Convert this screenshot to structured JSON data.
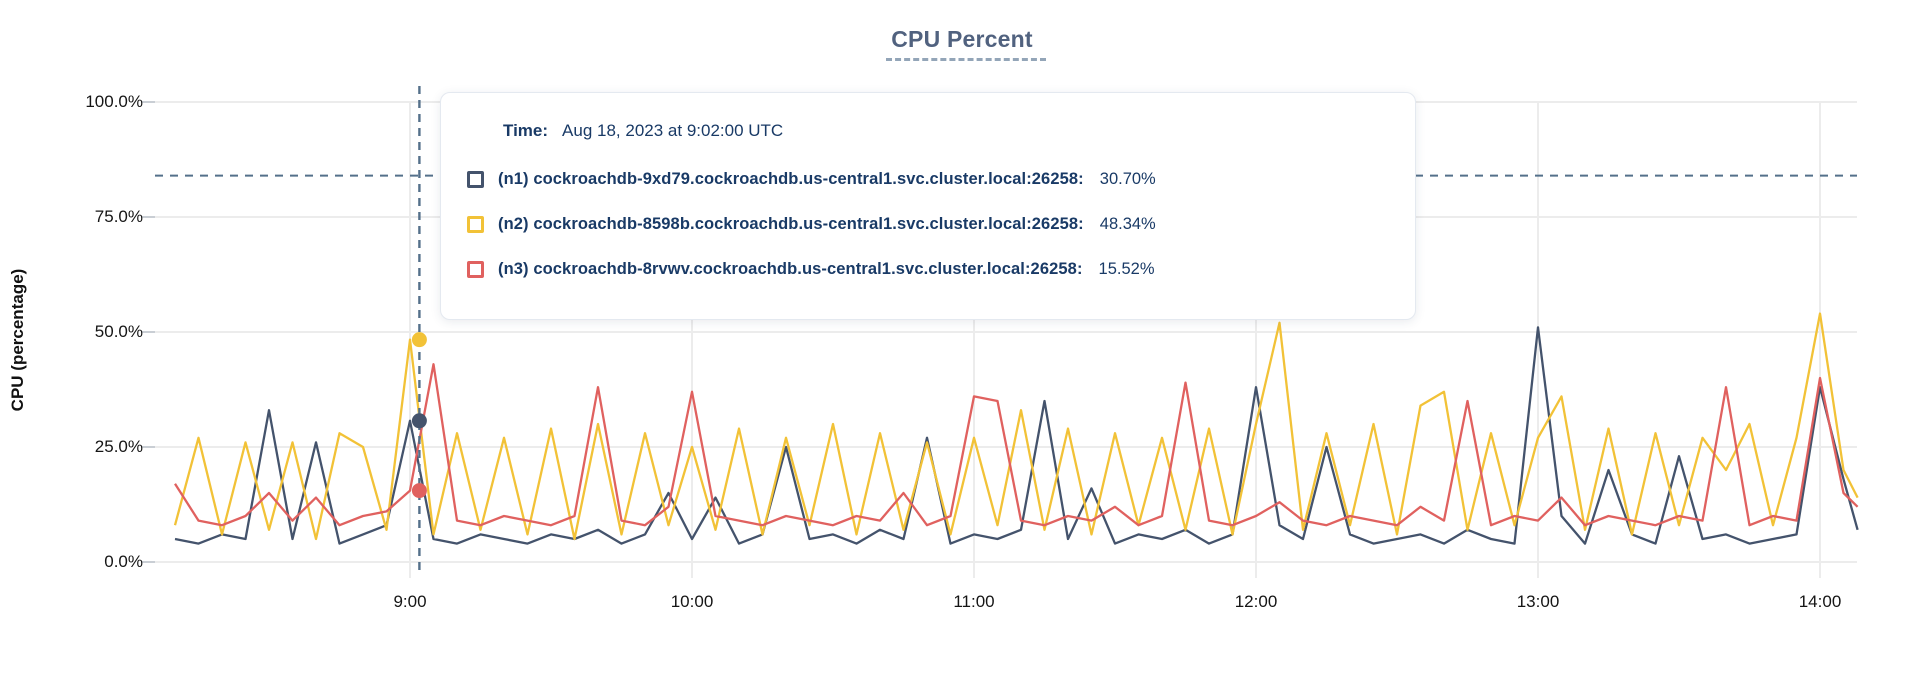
{
  "chart_data": {
    "type": "line",
    "title": "CPU Percent",
    "ylabel": "CPU (percentage)",
    "ylim": [
      0,
      100
    ],
    "grid": true,
    "legend_position": "tooltip",
    "y_ticks": [
      {
        "label": "0.0%",
        "value": 0
      },
      {
        "label": "25.0%",
        "value": 25
      },
      {
        "label": "50.0%",
        "value": 50
      },
      {
        "label": "75.0%",
        "value": 75
      },
      {
        "label": "100.0%",
        "value": 100
      }
    ],
    "x_ticks": [
      {
        "label": "9:00",
        "minutes": 540
      },
      {
        "label": "10:00",
        "minutes": 600
      },
      {
        "label": "11:00",
        "minutes": 660
      },
      {
        "label": "12:00",
        "minutes": 720
      },
      {
        "label": "13:00",
        "minutes": 780
      },
      {
        "label": "14:00",
        "minutes": 840
      }
    ],
    "threshold_percent": 84,
    "hover": {
      "minutes": 542,
      "time": "Aug 18, 2023 at 9:02:00 UTC",
      "values": [
        30.7,
        48.34,
        15.52
      ]
    },
    "series": [
      {
        "id": "n1",
        "name": "(n1) cockroachdb-9xd79.cockroachdb.us-central1.svc.cluster.local:26258",
        "color": "#44536c",
        "points": [
          [
            490,
            5
          ],
          [
            495,
            4
          ],
          [
            500,
            6
          ],
          [
            505,
            5
          ],
          [
            510,
            33
          ],
          [
            515,
            5
          ],
          [
            520,
            26
          ],
          [
            525,
            4
          ],
          [
            530,
            6
          ],
          [
            535,
            8
          ],
          [
            540,
            30.7
          ],
          [
            545,
            5
          ],
          [
            550,
            4
          ],
          [
            555,
            6
          ],
          [
            560,
            5
          ],
          [
            565,
            4
          ],
          [
            570,
            6
          ],
          [
            575,
            5
          ],
          [
            580,
            7
          ],
          [
            585,
            4
          ],
          [
            590,
            6
          ],
          [
            595,
            15
          ],
          [
            600,
            5
          ],
          [
            605,
            14
          ],
          [
            610,
            4
          ],
          [
            615,
            6
          ],
          [
            620,
            25
          ],
          [
            625,
            5
          ],
          [
            630,
            6
          ],
          [
            635,
            4
          ],
          [
            640,
            7
          ],
          [
            645,
            5
          ],
          [
            650,
            27
          ],
          [
            655,
            4
          ],
          [
            660,
            6
          ],
          [
            665,
            5
          ],
          [
            670,
            7
          ],
          [
            675,
            35
          ],
          [
            680,
            5
          ],
          [
            685,
            16
          ],
          [
            690,
            4
          ],
          [
            695,
            6
          ],
          [
            700,
            5
          ],
          [
            705,
            7
          ],
          [
            710,
            4
          ],
          [
            715,
            6
          ],
          [
            720,
            38
          ],
          [
            725,
            8
          ],
          [
            730,
            5
          ],
          [
            735,
            25
          ],
          [
            740,
            6
          ],
          [
            745,
            4
          ],
          [
            750,
            5
          ],
          [
            755,
            6
          ],
          [
            760,
            4
          ],
          [
            765,
            7
          ],
          [
            770,
            5
          ],
          [
            775,
            4
          ],
          [
            780,
            51
          ],
          [
            785,
            10
          ],
          [
            790,
            4
          ],
          [
            795,
            20
          ],
          [
            800,
            6
          ],
          [
            805,
            4
          ],
          [
            810,
            23
          ],
          [
            815,
            5
          ],
          [
            820,
            6
          ],
          [
            825,
            4
          ],
          [
            830,
            5
          ],
          [
            835,
            6
          ],
          [
            840,
            38
          ],
          [
            845,
            18
          ],
          [
            848,
            7
          ]
        ]
      },
      {
        "id": "n2",
        "name": "(n2) cockroachdb-8598b.cockroachdb.us-central1.svc.cluster.local:26258",
        "color": "#f2c237",
        "points": [
          [
            490,
            8
          ],
          [
            495,
            27
          ],
          [
            500,
            6
          ],
          [
            505,
            26
          ],
          [
            510,
            7
          ],
          [
            515,
            26
          ],
          [
            520,
            5
          ],
          [
            525,
            28
          ],
          [
            530,
            25
          ],
          [
            535,
            7
          ],
          [
            540,
            48.34
          ],
          [
            545,
            6
          ],
          [
            550,
            28
          ],
          [
            555,
            7
          ],
          [
            560,
            27
          ],
          [
            565,
            6
          ],
          [
            570,
            29
          ],
          [
            575,
            5
          ],
          [
            580,
            30
          ],
          [
            585,
            6
          ],
          [
            590,
            28
          ],
          [
            595,
            8
          ],
          [
            600,
            25
          ],
          [
            605,
            7
          ],
          [
            610,
            29
          ],
          [
            615,
            6
          ],
          [
            620,
            27
          ],
          [
            625,
            8
          ],
          [
            630,
            30
          ],
          [
            635,
            6
          ],
          [
            640,
            28
          ],
          [
            645,
            7
          ],
          [
            650,
            26
          ],
          [
            655,
            6
          ],
          [
            660,
            27
          ],
          [
            665,
            8
          ],
          [
            670,
            33
          ],
          [
            675,
            7
          ],
          [
            680,
            29
          ],
          [
            685,
            6
          ],
          [
            690,
            28
          ],
          [
            695,
            8
          ],
          [
            700,
            27
          ],
          [
            705,
            7
          ],
          [
            710,
            29
          ],
          [
            715,
            6
          ],
          [
            720,
            30
          ],
          [
            725,
            52
          ],
          [
            730,
            7
          ],
          [
            735,
            28
          ],
          [
            740,
            8
          ],
          [
            745,
            30
          ],
          [
            750,
            6
          ],
          [
            755,
            34
          ],
          [
            760,
            37
          ],
          [
            765,
            7
          ],
          [
            770,
            28
          ],
          [
            775,
            8
          ],
          [
            780,
            27
          ],
          [
            785,
            36
          ],
          [
            790,
            7
          ],
          [
            795,
            29
          ],
          [
            800,
            6
          ],
          [
            805,
            28
          ],
          [
            810,
            8
          ],
          [
            815,
            27
          ],
          [
            820,
            20
          ],
          [
            825,
            30
          ],
          [
            830,
            8
          ],
          [
            835,
            27
          ],
          [
            840,
            54
          ],
          [
            845,
            20
          ],
          [
            848,
            14
          ]
        ]
      },
      {
        "id": "n3",
        "name": "(n3) cockroachdb-8rvwv.cockroachdb.us-central1.svc.cluster.local:26258",
        "color": "#e0615f",
        "points": [
          [
            490,
            17
          ],
          [
            495,
            9
          ],
          [
            500,
            8
          ],
          [
            505,
            10
          ],
          [
            510,
            15
          ],
          [
            515,
            9
          ],
          [
            520,
            14
          ],
          [
            525,
            8
          ],
          [
            530,
            10
          ],
          [
            535,
            11
          ],
          [
            540,
            15.52
          ],
          [
            545,
            43
          ],
          [
            550,
            9
          ],
          [
            555,
            8
          ],
          [
            560,
            10
          ],
          [
            565,
            9
          ],
          [
            570,
            8
          ],
          [
            575,
            10
          ],
          [
            580,
            38
          ],
          [
            585,
            9
          ],
          [
            590,
            8
          ],
          [
            595,
            12
          ],
          [
            600,
            37
          ],
          [
            605,
            10
          ],
          [
            610,
            9
          ],
          [
            615,
            8
          ],
          [
            620,
            10
          ],
          [
            625,
            9
          ],
          [
            630,
            8
          ],
          [
            635,
            10
          ],
          [
            640,
            9
          ],
          [
            645,
            15
          ],
          [
            650,
            8
          ],
          [
            655,
            10
          ],
          [
            660,
            36
          ],
          [
            665,
            35
          ],
          [
            670,
            9
          ],
          [
            675,
            8
          ],
          [
            680,
            10
          ],
          [
            685,
            9
          ],
          [
            690,
            12
          ],
          [
            695,
            8
          ],
          [
            700,
            10
          ],
          [
            705,
            39
          ],
          [
            710,
            9
          ],
          [
            715,
            8
          ],
          [
            720,
            10
          ],
          [
            725,
            13
          ],
          [
            730,
            9
          ],
          [
            735,
            8
          ],
          [
            740,
            10
          ],
          [
            745,
            9
          ],
          [
            750,
            8
          ],
          [
            755,
            12
          ],
          [
            760,
            9
          ],
          [
            765,
            35
          ],
          [
            770,
            8
          ],
          [
            775,
            10
          ],
          [
            780,
            9
          ],
          [
            785,
            14
          ],
          [
            790,
            8
          ],
          [
            795,
            10
          ],
          [
            800,
            9
          ],
          [
            805,
            8
          ],
          [
            810,
            10
          ],
          [
            815,
            9
          ],
          [
            820,
            38
          ],
          [
            825,
            8
          ],
          [
            830,
            10
          ],
          [
            835,
            9
          ],
          [
            840,
            40
          ],
          [
            845,
            15
          ],
          [
            848,
            12
          ]
        ]
      }
    ]
  },
  "tooltip": {
    "time_label": "Time:",
    "time_value": "Aug 18, 2023 at 9:02:00 UTC",
    "rows": [
      {
        "label": "(n1) cockroachdb-9xd79.cockroachdb.us-central1.svc.cluster.local:26258:",
        "value": "30.70%",
        "color": "#44536c"
      },
      {
        "label": "(n2) cockroachdb-8598b.cockroachdb.us-central1.svc.cluster.local:26258:",
        "value": "48.34%",
        "color": "#f2c237"
      },
      {
        "label": "(n3) cockroachdb-8rvwv.cockroachdb.us-central1.svc.cluster.local:26258:",
        "value": "15.52%",
        "color": "#e0615f"
      }
    ]
  },
  "colors": {
    "title": "#51627f",
    "gridline": "#ececec",
    "axis_tick": "#c9ced4",
    "dashed_guides": "#54708a",
    "tooltip_text": "#193a66"
  }
}
